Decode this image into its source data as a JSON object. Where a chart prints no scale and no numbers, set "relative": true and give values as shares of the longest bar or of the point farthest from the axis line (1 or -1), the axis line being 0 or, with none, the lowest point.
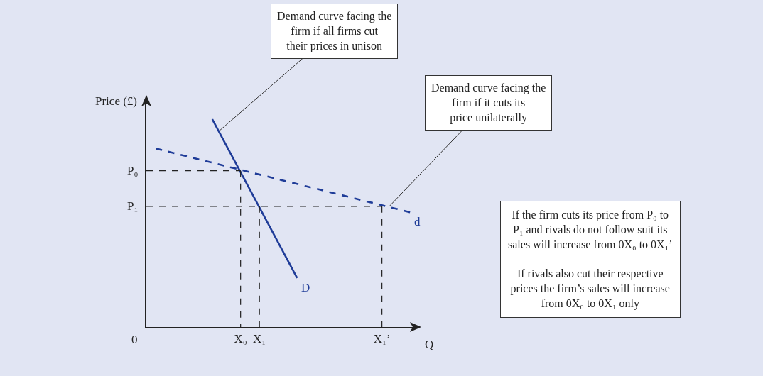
{
  "chart_data": {
    "type": "line",
    "relative": true,
    "xlabel": "Q",
    "ylabel": "Price (£)",
    "categories": [
      null,
      null,
      null,
      null,
      null,
      null,
      null,
      null,
      null,
      null,
      "X₀",
      null,
      "X₁",
      null,
      null,
      null,
      null,
      null,
      null,
      null,
      null,
      null,
      null,
      null,
      null,
      "X₁’",
      null,
      null,
      null
    ],
    "series": [
      {
        "name": "D",
        "color": "#1f3c98",
        "line_style": "solid",
        "values": [
          null,
          null,
          null,
          null,
          null,
          null,
          null,
          1,
          null,
          null,
          null,
          null,
          null,
          null,
          null,
          null,
          0.236,
          null,
          null,
          null,
          null,
          null,
          null,
          null,
          null,
          null,
          null,
          null,
          null
        ]
      },
      {
        "name": "d",
        "color": "#1f3c98",
        "line_style": "dashed",
        "values": [
          null,
          0.859,
          null,
          null,
          null,
          null,
          null,
          null,
          null,
          null,
          null,
          null,
          null,
          null,
          null,
          null,
          null,
          null,
          null,
          null,
          null,
          null,
          null,
          null,
          null,
          null,
          null,
          null,
          0.552
        ]
      },
      {
        "color": "#222222",
        "line_style": "dashed",
        "values": [
          0.752,
          null,
          null,
          null,
          null,
          null,
          null,
          null,
          null,
          null,
          0.752,
          null,
          null,
          null,
          null,
          null,
          null,
          null,
          null,
          null,
          null,
          null,
          null,
          null,
          null,
          null,
          null,
          null,
          null
        ]
      },
      {
        "color": "#222222",
        "line_style": "dashed",
        "values": [
          0.581,
          null,
          null,
          null,
          null,
          null,
          null,
          null,
          null,
          null,
          null,
          null,
          null,
          null,
          null,
          null,
          null,
          null,
          null,
          null,
          null,
          null,
          null,
          null,
          null,
          0.581,
          null,
          null,
          null
        ]
      },
      {
        "color": "#222222",
        "line_style": "dashed",
        "x": [
          "X₀",
          "X₀"
        ],
        "values": [
          0.752,
          0
        ]
      },
      {
        "color": "#222222",
        "line_style": "dashed",
        "x": [
          "X₁",
          "X₁"
        ],
        "values": [
          0.581,
          0
        ]
      },
      {
        "color": "#222222",
        "line_style": "dashed",
        "x": [
          "X₁’",
          "X₁’"
        ],
        "values": [
          0.581,
          0
        ]
      }
    ],
    "annotations": [
      "0",
      "P₀",
      "P₁",
      "Demand curve facing the firm if all firms cut their prices in unison",
      "Demand curve facing the firm if it cuts its price unilaterally",
      "If the firm cuts its price from P₀ to P₁ and rivals do not follow suit its sales will increase from 0X₀ to 0X₁’",
      "If rivals also cut their respective prices the firm’s sales will increase from 0X₀ to 0X₁ only"
    ],
    "legend": false,
    "marker": "none"
  }
}
